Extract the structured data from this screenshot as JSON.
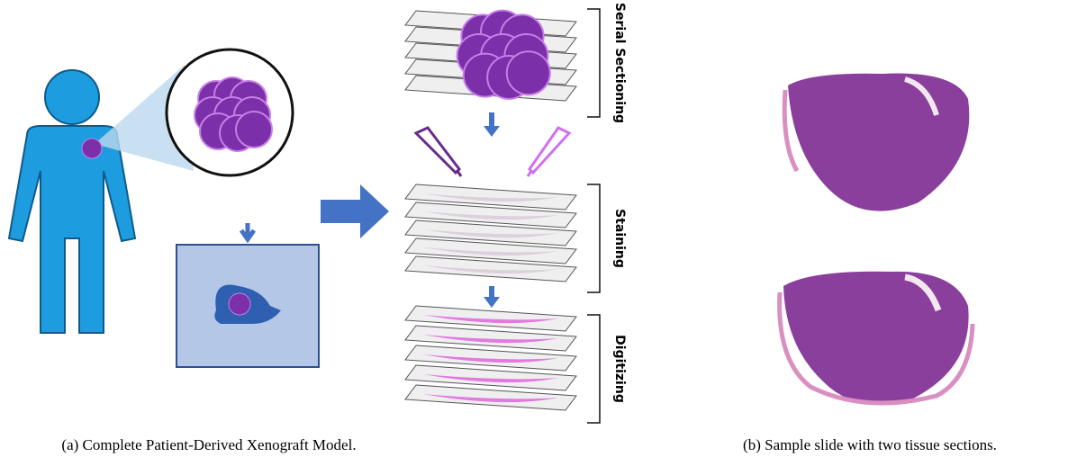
{
  "panels": [
    {
      "caption": "(a) Complete Patient-Derived Xenograft Model.",
      "steps": [
        "Serial Sectioning",
        "Staining",
        "Digitizing"
      ]
    },
    {
      "caption": "(b) Sample slide with two tissue sections."
    }
  ]
}
